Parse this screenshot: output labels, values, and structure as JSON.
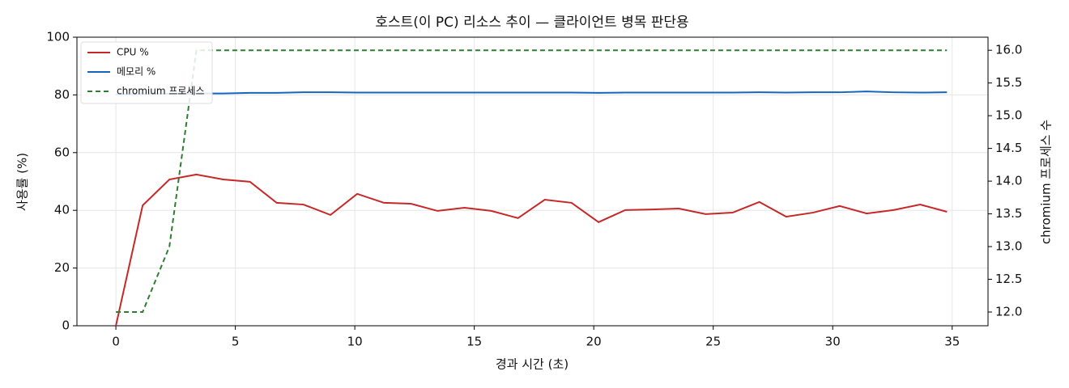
{
  "chart_data": {
    "type": "line",
    "title": "호스트(이 PC) 리소스 추이 — 클라이언트 병목 판단용",
    "xlabel": "경과 시간 (초)",
    "ylabel": "사용률 (%)",
    "y2label": "chromium 프로세스 수",
    "x": [
      0,
      1.12,
      2.24,
      3.37,
      4.49,
      5.61,
      6.73,
      7.85,
      8.98,
      10.1,
      11.22,
      12.34,
      13.46,
      14.59,
      15.71,
      16.83,
      17.95,
      19.07,
      20.2,
      21.32,
      22.44,
      23.56,
      24.68,
      25.81,
      26.93,
      28.05,
      29.17,
      30.29,
      31.42,
      32.54,
      33.66,
      34.78
    ],
    "series": [
      {
        "name": "CPU %",
        "color": "#c62828",
        "linestyle": "solid",
        "values": [
          0,
          41.7,
          50.7,
          52.4,
          50.7,
          49.9,
          42.6,
          42.0,
          38.4,
          45.7,
          42.6,
          42.3,
          39.8,
          40.9,
          39.8,
          37.3,
          43.7,
          42.6,
          35.9,
          40.1,
          40.3,
          40.6,
          38.7,
          39.2,
          42.9,
          37.8,
          39.2,
          41.5,
          38.9,
          40.1,
          42.0,
          39.5
        ]
      },
      {
        "name": "메모리 %",
        "color": "#1565c0",
        "linestyle": "solid",
        "values": [
          80.2,
          80.3,
          80.4,
          80.5,
          80.5,
          80.7,
          80.7,
          80.9,
          80.9,
          80.8,
          80.8,
          80.8,
          80.8,
          80.8,
          80.8,
          80.8,
          80.8,
          80.8,
          80.7,
          80.8,
          80.8,
          80.8,
          80.8,
          80.8,
          80.9,
          80.8,
          80.9,
          80.9,
          81.2,
          80.9,
          80.8,
          80.9
        ]
      },
      {
        "name": "chromium 프로세스",
        "color": "#2e7d32",
        "linestyle": "dashed",
        "axis": "y2",
        "values": [
          12,
          12,
          13,
          16,
          16,
          16,
          16,
          16,
          16,
          16,
          16,
          16,
          16,
          16,
          16,
          16,
          16,
          16,
          16,
          16,
          16,
          16,
          16,
          16,
          16,
          16,
          16,
          16,
          16,
          16,
          16,
          16
        ]
      }
    ],
    "xlim": [
      -1.63,
      36.5
    ],
    "xticks": [
      0,
      5,
      10,
      15,
      20,
      25,
      30,
      35
    ],
    "ylim": [
      0,
      100
    ],
    "yticks": [
      0,
      20,
      40,
      60,
      80,
      100
    ],
    "y2lim": [
      11.79,
      16.2
    ],
    "y2ticks": [
      {
        "value": 12,
        "label": "12.0"
      },
      {
        "value": 12.5,
        "label": "12.5"
      },
      {
        "value": 13,
        "label": "13.0"
      },
      {
        "value": 13.5,
        "label": "13.5"
      },
      {
        "value": 14,
        "label": "14.0"
      },
      {
        "value": 14.5,
        "label": "14.5"
      },
      {
        "value": 15,
        "label": "15.0"
      },
      {
        "value": 15.5,
        "label": "15.5"
      },
      {
        "value": 16,
        "label": "16.0"
      }
    ],
    "grid": true,
    "legend": "upper-left"
  }
}
